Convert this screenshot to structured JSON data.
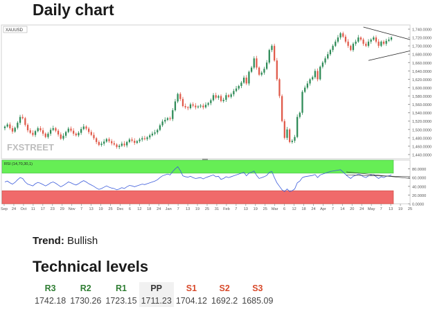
{
  "page": {
    "title": "Daily chart",
    "trend_label": "Trend:",
    "trend_value": "Bullish",
    "levels_title": "Technical levels"
  },
  "levels": [
    {
      "name": "R3",
      "value": "1742.18",
      "color": "#2e7d32"
    },
    {
      "name": "R2",
      "value": "1730.26",
      "color": "#2e7d32"
    },
    {
      "name": "R1",
      "value": "1723.15",
      "color": "#2e7d32"
    },
    {
      "name": "PP",
      "value": "1711.23",
      "color": "#333333"
    },
    {
      "name": "S1",
      "value": "1704.12",
      "color": "#d84a2b"
    },
    {
      "name": "S2",
      "value": "1692.2",
      "color": "#d84a2b"
    },
    {
      "name": "S3",
      "value": "1685.09",
      "color": "#d84a2b"
    }
  ],
  "chart_data": [
    {
      "type": "candlestick",
      "symbol": "XAUUSD",
      "watermark": "FXSTREET",
      "yticks": [
        "1,740.0000",
        "1,720.0000",
        "1,700.0000",
        "1,680.0000",
        "1,660.0000",
        "1,640.0000",
        "1,620.0000",
        "1,600.0000",
        "1,580.0000",
        "1,560.0000",
        "1,540.0000",
        "1,520.0000",
        "1,500.0000",
        "1,480.0000",
        "1,460.0000",
        "1,440.0000"
      ],
      "ylim": [
        1430,
        1750
      ],
      "xticks": [
        "Sep",
        "24",
        "Oct",
        "11",
        "17",
        "23",
        "29",
        "Nov",
        "7",
        "13",
        "19",
        "25",
        "Dec",
        "6",
        "12",
        "18",
        "24",
        "Jan",
        "7",
        "13",
        "19",
        "25",
        "31",
        "Feb",
        "7",
        "13",
        "19",
        "25",
        "Mar",
        "6",
        "12",
        "18",
        "24",
        "Apr",
        "7",
        "14",
        "20",
        "24",
        "May",
        "7",
        "13",
        "19",
        "25"
      ],
      "close": [
        1507,
        1512,
        1503,
        1495,
        1504,
        1516,
        1530,
        1527,
        1511,
        1498,
        1492,
        1487,
        1496,
        1503,
        1498,
        1490,
        1482,
        1490,
        1499,
        1503,
        1497,
        1488,
        1478,
        1485,
        1494,
        1502,
        1497,
        1490,
        1486,
        1492,
        1501,
        1507,
        1502,
        1494,
        1487,
        1479,
        1470,
        1463,
        1466,
        1471,
        1477,
        1472,
        1467,
        1464,
        1458,
        1461,
        1466,
        1462,
        1470,
        1476,
        1473,
        1468,
        1472,
        1476,
        1479,
        1477,
        1481,
        1486,
        1490,
        1493,
        1499,
        1510,
        1519,
        1523,
        1527,
        1525,
        1546,
        1567,
        1585,
        1573,
        1556,
        1553,
        1551,
        1560,
        1557,
        1553,
        1555,
        1557,
        1553,
        1559,
        1563,
        1570,
        1582,
        1576,
        1580,
        1568,
        1571,
        1582,
        1578,
        1584,
        1592,
        1598,
        1604,
        1612,
        1624,
        1610,
        1638,
        1648,
        1670,
        1648,
        1631,
        1636,
        1645,
        1660,
        1690,
        1700,
        1665,
        1620,
        1580,
        1520,
        1480,
        1500,
        1470,
        1473,
        1482,
        1530,
        1540,
        1590,
        1600,
        1610,
        1620,
        1625,
        1640,
        1620,
        1650,
        1660,
        1670,
        1680,
        1690,
        1700,
        1710,
        1720,
        1730,
        1722,
        1710,
        1700,
        1690,
        1705,
        1710,
        1720,
        1715,
        1705,
        1700,
        1710,
        1715,
        1720,
        1710,
        1700,
        1710,
        1705,
        1712,
        1715,
        1720
      ],
      "rsi": {
        "label": "RSI (14,70,30,1)",
        "yticks": [
          "80.0000",
          "60.0000",
          "40.0000",
          "20.0000",
          "0.0000"
        ],
        "ylim": [
          0,
          100
        ],
        "overbought": 70,
        "oversold": 30,
        "values": [
          50,
          52,
          48,
          45,
          49,
          55,
          60,
          58,
          50,
          45,
          43,
          41,
          46,
          49,
          47,
          44,
          41,
          44,
          48,
          50,
          47,
          43,
          39,
          42,
          46,
          50,
          48,
          45,
          43,
          46,
          50,
          53,
          50,
          46,
          43,
          40,
          36,
          33,
          35,
          38,
          41,
          38,
          36,
          35,
          32,
          34,
          37,
          35,
          39,
          42,
          41,
          39,
          41,
          43,
          45,
          44,
          46,
          48,
          50,
          52,
          55,
          60,
          64,
          66,
          68,
          66,
          74,
          80,
          85,
          76,
          64,
          62,
          61,
          63,
          60,
          58,
          59,
          60,
          57,
          60,
          62,
          64,
          66,
          62,
          63,
          56,
          58,
          62,
          60,
          62,
          64,
          66,
          68,
          70,
          72,
          64,
          70,
          72,
          75,
          65,
          58,
          60,
          62,
          65,
          72,
          74,
          60,
          48,
          40,
          32,
          28,
          34,
          28,
          30,
          34,
          48,
          52,
          60,
          62,
          63,
          64,
          65,
          67,
          60,
          66,
          68,
          70,
          72,
          74,
          75,
          76,
          77,
          78,
          73,
          67,
          62,
          58,
          63,
          65,
          68,
          66,
          62,
          60,
          64,
          66,
          67,
          62,
          58,
          62,
          60,
          63,
          64,
          66
        ]
      }
    }
  ]
}
